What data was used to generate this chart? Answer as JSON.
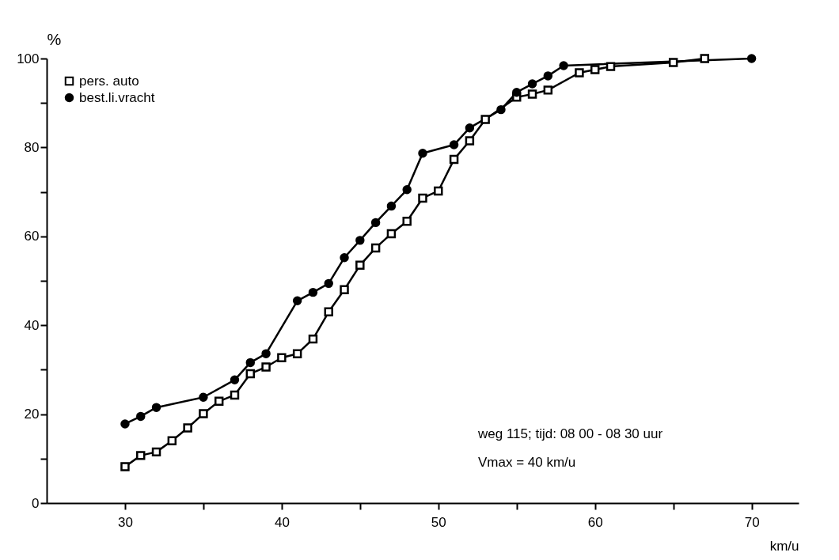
{
  "chart_data": {
    "type": "line",
    "xlabel": "km/u",
    "ylabel": "%",
    "xlim": [
      25,
      73
    ],
    "ylim": [
      0,
      100
    ],
    "xticks": [
      30,
      {
        "value": 35,
        "label": null
      },
      40,
      {
        "value": 45,
        "label": null
      },
      50,
      {
        "value": 55,
        "label": null
      },
      60,
      {
        "value": 65,
        "label": null
      },
      70
    ],
    "yticks": [
      0,
      {
        "value": 10,
        "label": null
      },
      20,
      {
        "value": 30,
        "label": null
      },
      40,
      {
        "value": 50,
        "label": null
      },
      60,
      {
        "value": 70,
        "label": null
      },
      80,
      {
        "value": 90,
        "label": null
      },
      100
    ],
    "grid": false,
    "legend": "top left",
    "series": [
      {
        "name": "pers. auto",
        "color": "#000000",
        "marker": "square",
        "x": [
          30,
          31,
          32,
          33,
          34,
          35,
          36,
          37,
          38,
          39,
          40,
          41,
          42,
          43,
          44,
          45,
          46,
          47,
          48,
          49,
          50,
          51,
          52,
          53,
          55,
          56,
          57,
          59,
          60,
          61,
          65,
          67
        ],
        "values": [
          8.2,
          10.7,
          11.5,
          14.0,
          16.9,
          20.1,
          22.9,
          24.3,
          29.1,
          30.6,
          32.7,
          33.6,
          36.9,
          43.0,
          48.0,
          53.5,
          57.4,
          60.6,
          63.4,
          68.6,
          70.2,
          77.3,
          81.5,
          86.3,
          91.3,
          92.0,
          92.9,
          96.8,
          97.5,
          98.2,
          99.1,
          100
        ]
      },
      {
        "name": "best.li.vracht",
        "color": "#000000",
        "marker": "circle",
        "x": [
          30,
          31,
          32,
          35,
          37,
          38,
          39,
          41,
          42,
          43,
          44,
          45,
          46,
          47,
          48,
          49,
          51,
          52,
          54,
          55,
          56,
          57,
          58,
          70
        ],
        "values": [
          17.8,
          19.5,
          21.5,
          23.8,
          27.7,
          31.6,
          33.6,
          45.5,
          47.4,
          49.4,
          55.2,
          59.1,
          63.1,
          66.8,
          70.5,
          78.7,
          80.6,
          84.4,
          88.5,
          92.4,
          94.3,
          96.1,
          98.4,
          100
        ]
      }
    ],
    "annotations": [
      "weg 115; tijd: 08 00 - 08 30 uur",
      "Vmax = 40 km/u"
    ]
  }
}
